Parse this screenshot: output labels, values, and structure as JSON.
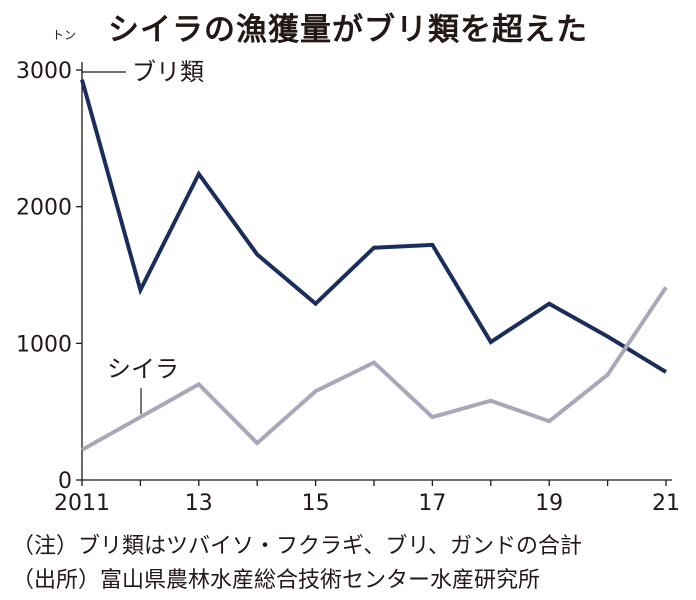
{
  "header": {
    "title": "シイラの漁獲量がブリ類を超えた",
    "unit": "トン"
  },
  "chart_data": {
    "type": "line",
    "title": "シイラの漁獲量がブリ類を超えた",
    "ylabel": "トン",
    "xlabel": "",
    "x": [
      2011,
      2012,
      2013,
      2014,
      2015,
      2016,
      2017,
      2018,
      2019,
      2020,
      2021
    ],
    "x_tick_labels": [
      "2011",
      "13",
      "15",
      "17",
      "19",
      "21"
    ],
    "y_ticks": [
      "0",
      "1000",
      "2000",
      "3000"
    ],
    "ylim": [
      0,
      3100
    ],
    "grid": false,
    "series": [
      {
        "name": "ブリ類",
        "color": "#1b2d5a",
        "values": [
          2930,
          1390,
          2240,
          1650,
          1290,
          1700,
          1720,
          1010,
          1290,
          1050,
          790
        ]
      },
      {
        "name": "シイラ",
        "color": "#a7a9ba",
        "values": [
          220,
          460,
          700,
          270,
          650,
          860,
          460,
          580,
          430,
          770,
          1410
        ]
      }
    ]
  },
  "footer": {
    "note": "（注）ブリ類はツバイソ・フクラギ、ブリ、ガンドの合計",
    "source": "（出所）富山県農林水産総合技術センター水産研究所"
  }
}
